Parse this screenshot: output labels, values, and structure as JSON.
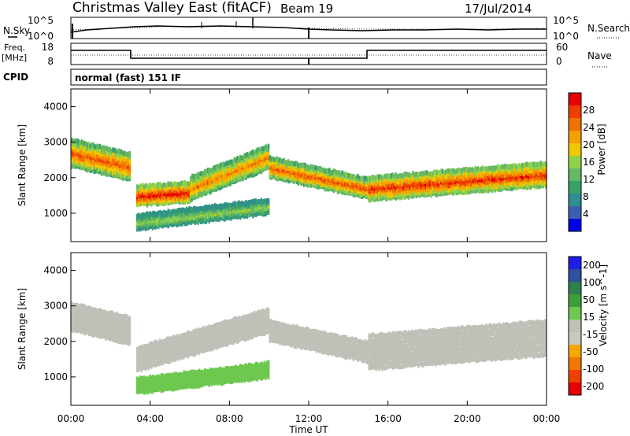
{
  "header": {
    "title": "Christmas Valley East (fitACF)",
    "beam": "Beam 19",
    "date": "17/Jul/2014"
  },
  "panels": {
    "nsky_label": "N.Sky",
    "nsky_ticks": [
      "10^5",
      "10^0"
    ],
    "nsearch_label": "N.Search",
    "nsearch_ticks": [
      "10^5",
      "10^0"
    ],
    "freq_label": "Freq.",
    "freq_unit": "[MHz]",
    "freq_ticks": [
      "18",
      "8"
    ],
    "nave_label": "Nave",
    "nave_ticks": [
      "60",
      "0"
    ],
    "cpid_label": "CPID",
    "cpid_value": "normal (fast) 151 IF"
  },
  "colors": {
    "power_scale": [
      "#0000e6",
      "#3b5fb0",
      "#2f8f8f",
      "#3aa06a",
      "#66b866",
      "#8fd24a",
      "#f0c800",
      "#f5a000",
      "#f07000",
      "#f03c00",
      "#e60000"
    ],
    "velocity_scale": [
      "#e60000",
      "#f04000",
      "#f07800",
      "#f5a800",
      "#c8c8c0",
      "#c0c0b8",
      "#6ec850",
      "#3aa03a",
      "#2f7f4f",
      "#2f4f9f",
      "#1e1ee6"
    ]
  },
  "chart_data": [
    {
      "type": "heatmap",
      "name": "power",
      "ylabel": "Slant Range [km]",
      "colorbar_label": "Power [dB]",
      "colorbar_ticks": [
        "28",
        "24",
        "20",
        "16",
        "12",
        "8",
        "4"
      ],
      "yticks": [
        "4000",
        "3000",
        "2000",
        "1000"
      ],
      "ylim": [
        200,
        4500
      ],
      "xlim": [
        0,
        24
      ],
      "echo_bands": [
        {
          "t": [
            0,
            3
          ],
          "range_center": [
            2700,
            2300
          ],
          "thickness": 350,
          "power_db": 24
        },
        {
          "t": [
            3.3,
            6
          ],
          "range_center": [
            1500,
            1600
          ],
          "thickness": 250,
          "power_db": 28
        },
        {
          "t": [
            6,
            10
          ],
          "range_center": [
            1700,
            2600
          ],
          "thickness": 300,
          "power_db": 22
        },
        {
          "t": [
            10,
            15
          ],
          "range_center": [
            2300,
            1700
          ],
          "thickness": 250,
          "power_db": 24
        },
        {
          "t": [
            15,
            24
          ],
          "range_center": [
            1700,
            2100
          ],
          "thickness": 300,
          "power_db": 26
        },
        {
          "t": [
            3.3,
            10
          ],
          "range_center": [
            750,
            1200
          ],
          "thickness": 180,
          "power_db": 14
        }
      ]
    },
    {
      "type": "heatmap",
      "name": "velocity",
      "ylabel": "Slant Range [km]",
      "xlabel": "Time UT",
      "colorbar_label": "Velocity [m s^-1]",
      "colorbar_ticks": [
        "200",
        "100",
        "50",
        "15",
        "-15",
        "-50",
        "-100",
        "-200"
      ],
      "yticks": [
        "4000",
        "3000",
        "2000",
        "1000"
      ],
      "xticks": [
        "00:00",
        "04:00",
        "08:00",
        "12:00",
        "16:00",
        "20:00",
        "00:00"
      ],
      "ylim": [
        200,
        4500
      ],
      "xlim": [
        0,
        24
      ],
      "echo_bands": [
        {
          "t": [
            0,
            3
          ],
          "range_center": [
            2700,
            2300
          ],
          "thickness": 350,
          "velocity": 0
        },
        {
          "t": [
            3.3,
            10
          ],
          "range_center": [
            1500,
            2600
          ],
          "thickness": 300,
          "velocity": 0
        },
        {
          "t": [
            10,
            15
          ],
          "range_center": [
            2300,
            1700
          ],
          "thickness": 250,
          "velocity": 0
        },
        {
          "t": [
            15,
            24
          ],
          "range_center": [
            1700,
            2100
          ],
          "thickness": 450,
          "velocity": 0
        },
        {
          "t": [
            3.3,
            10
          ],
          "range_center": [
            750,
            1200
          ],
          "thickness": 180,
          "velocity": 40
        }
      ]
    }
  ]
}
